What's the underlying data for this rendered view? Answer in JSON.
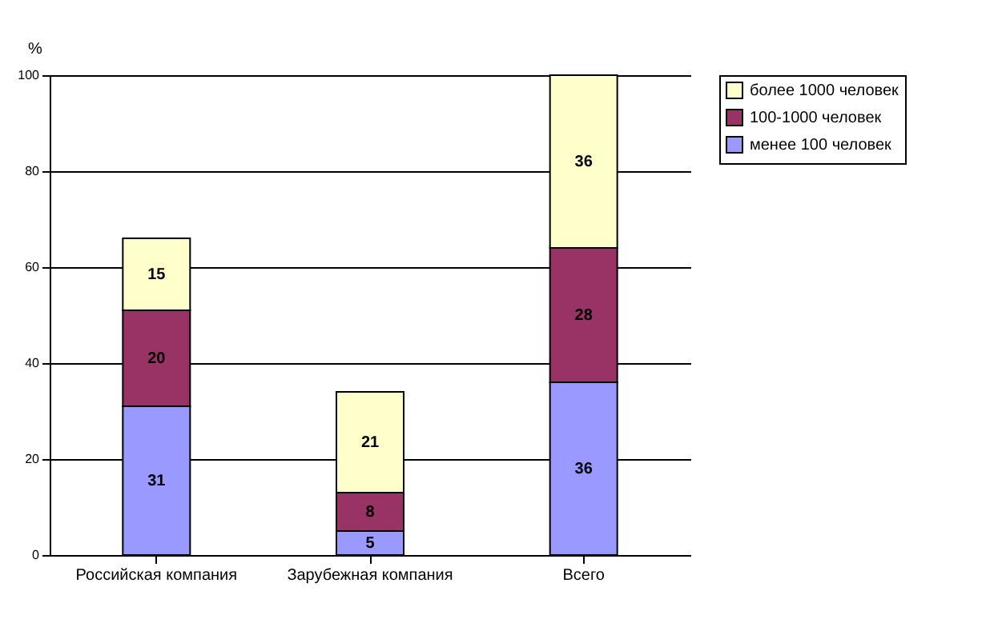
{
  "chart_data": {
    "type": "bar",
    "stacked": true,
    "ylabel": "%",
    "categories": [
      "Российская компания",
      "Зарубежная компания",
      "Всего"
    ],
    "series": [
      {
        "name": "менее 100 человек",
        "color": "#9999ff",
        "values": [
          31,
          5,
          36
        ]
      },
      {
        "name": "100-1000 человек",
        "color": "#993366",
        "values": [
          20,
          8,
          28
        ]
      },
      {
        "name": "более 1000 человек",
        "color": "#ffffcc",
        "values": [
          15,
          21,
          36
        ]
      }
    ],
    "ylim": [
      0,
      100
    ],
    "yticks": [
      0,
      20,
      40,
      60,
      80,
      100
    ],
    "grid": "y",
    "legend": "right",
    "data_labels": true
  }
}
